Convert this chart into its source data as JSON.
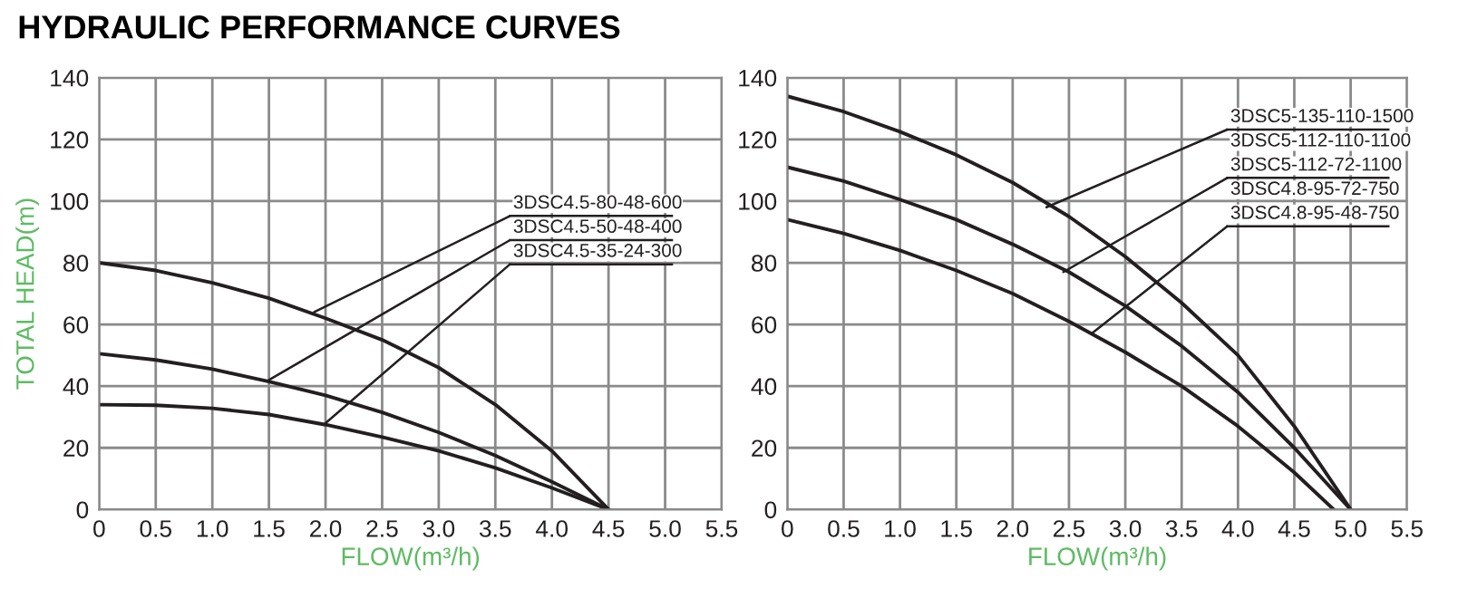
{
  "chart_data": [
    {
      "type": "line",
      "title": "HYDRAULIC PERFORMANCE CURVES",
      "xlabel": "FLOW(m³/h)",
      "ylabel": "TOTAL HEAD(m)",
      "xlim": [
        0,
        5.5
      ],
      "ylim": [
        0,
        140
      ],
      "xticks": [
        {
          "value": 0,
          "label": "0"
        },
        0.5,
        {
          "value": 1,
          "label": "1.0"
        },
        1.5,
        {
          "value": 2,
          "label": "2.0"
        },
        2.5,
        {
          "value": 3,
          "label": "3.0"
        },
        3.5,
        {
          "value": 4,
          "label": "4.0"
        },
        4.5,
        {
          "value": 5,
          "label": "5.0"
        },
        5.5
      ],
      "yticks": [
        0,
        20,
        40,
        60,
        80,
        100,
        120,
        140
      ],
      "grid": true,
      "legend": false,
      "marker": "none",
      "line_style": "solid",
      "series": [
        {
          "color": "#231f20",
          "x": [
            0,
            0.5,
            1.0,
            1.5,
            2.0,
            2.5,
            3.0,
            3.5,
            4.0,
            4.5
          ],
          "values": [
            80,
            77.5,
            73.5,
            68.5,
            62,
            55,
            46,
            34,
            19,
            0
          ]
        },
        {
          "color": "#231f20",
          "x": [
            0,
            0.5,
            1.0,
            1.5,
            2.0,
            2.5,
            3.0,
            3.5,
            4.0,
            4.5
          ],
          "values": [
            50.5,
            48.5,
            45.5,
            41.5,
            37,
            31.5,
            25,
            17.5,
            9,
            0
          ]
        },
        {
          "color": "#231f20",
          "x": [
            0,
            0.5,
            1.0,
            1.5,
            2.0,
            2.5,
            3.0,
            3.5,
            4.0,
            4.5
          ],
          "values": [
            34,
            33.8,
            32.8,
            30.8,
            27.5,
            23.5,
            19,
            13.5,
            7,
            0
          ]
        }
      ],
      "annotations": [
        {
          "text": "3DSC4.5-80-48-600",
          "x": 1.9,
          "y": 64
        },
        {
          "text": "3DSC4.5-50-48-400",
          "x": 1.5,
          "y": 42
        },
        {
          "text": "3DSC4.5-35-24-300",
          "x": 2.0,
          "y": 28
        }
      ]
    },
    {
      "type": "line",
      "xlabel": "FLOW(m³/h)",
      "xlim": [
        0,
        5.5
      ],
      "ylim": [
        0,
        140
      ],
      "xticks": [
        {
          "value": 0,
          "label": "0"
        },
        0.5,
        {
          "value": 1,
          "label": "1.0"
        },
        1.5,
        {
          "value": 2,
          "label": "2.0"
        },
        2.5,
        {
          "value": 3,
          "label": "3.0"
        },
        3.5,
        {
          "value": 4,
          "label": "4.0"
        },
        4.5,
        {
          "value": 5,
          "label": "5.0"
        },
        5.5
      ],
      "yticks": [
        0,
        20,
        40,
        60,
        80,
        100,
        120,
        140
      ],
      "grid": true,
      "legend": false,
      "marker": "none",
      "line_style": "solid",
      "series": [
        {
          "color": "#231f20",
          "x": [
            0,
            0.5,
            1.0,
            1.5,
            2.0,
            2.5,
            3.0,
            3.5,
            4.0,
            4.5,
            5.0
          ],
          "values": [
            134,
            129,
            122.5,
            115,
            106,
            95,
            82,
            67,
            50,
            27,
            0
          ]
        },
        {
          "color": "#231f20",
          "x": [
            0,
            0.5,
            1.0,
            1.5,
            2.0,
            2.5,
            3.0,
            3.5,
            4.0,
            4.5,
            5.0
          ],
          "values": [
            111,
            106.5,
            100.5,
            94,
            86,
            77,
            66,
            53,
            38,
            20,
            0
          ]
        },
        {
          "color": "#231f20",
          "x": [
            0,
            0.5,
            1.0,
            1.5,
            2.0,
            2.5,
            3.0,
            3.5,
            4.0,
            4.5,
            4.85
          ],
          "values": [
            94,
            89.5,
            84,
            77.5,
            70,
            61,
            51,
            40,
            27,
            12,
            0
          ]
        }
      ],
      "annotations": [
        {
          "text": "3DSC5-135-110-1500",
          "x": 2.3,
          "y": 98
        },
        "3DSC5-112-110-1100",
        {
          "text": "3DSC5-112-72-1100",
          "x": 2.45,
          "y": 77
        },
        "3DSC4.8-95-72-750",
        {
          "text": "3DSC4.8-95-48-750",
          "x": 2.7,
          "y": 57
        }
      ]
    }
  ]
}
